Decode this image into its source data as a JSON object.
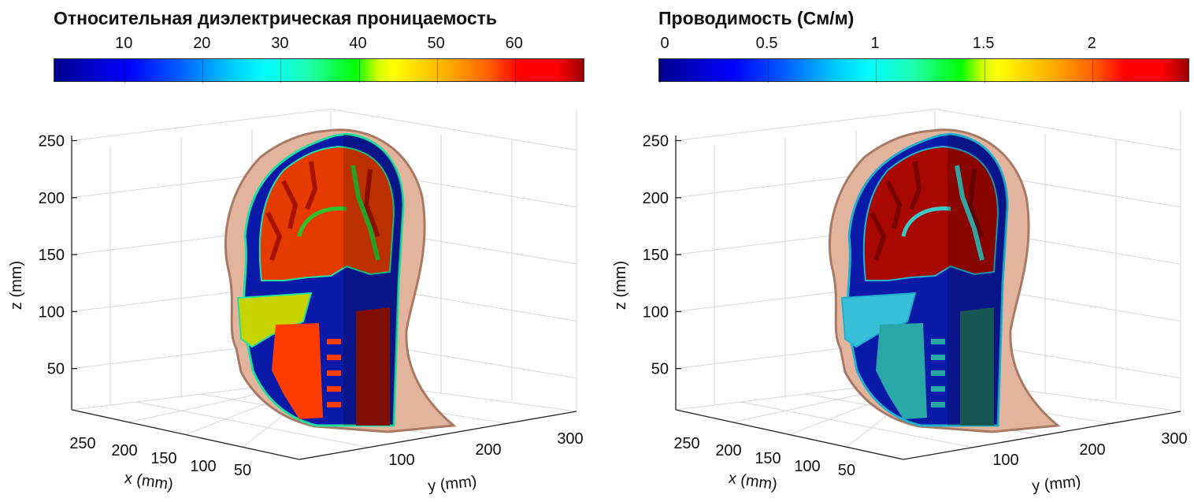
{
  "chart_data": [
    {
      "type": "heatmap",
      "title": "Относительная диэлектрическая проницаемость",
      "colorbar": {
        "ticks": [
          10,
          20,
          30,
          40,
          50,
          60
        ],
        "tick_labels": [
          "10",
          "20",
          "30",
          "40",
          "50",
          "60"
        ],
        "range": [
          1,
          69
        ],
        "colormap": "jet"
      },
      "xlabel": "x (mm)",
      "ylabel": "y (mm)",
      "zlabel": "z (mm)",
      "x_ticks": [
        "250",
        "200",
        "150",
        "100",
        "50"
      ],
      "y_ticks": [
        "100",
        "200",
        "300"
      ],
      "z_ticks": [
        "250",
        "200",
        "150",
        "100",
        "50"
      ],
      "xlim": [
        0,
        270
      ],
      "ylim": [
        0,
        320
      ],
      "zlim": [
        0,
        260
      ],
      "grid": true
    },
    {
      "type": "heatmap",
      "title": "Проводимость (См/м)",
      "colorbar": {
        "ticks": [
          0,
          0.5,
          1,
          1.5,
          2
        ],
        "tick_labels": [
          "0",
          "0.5",
          "1",
          "1.5",
          "2"
        ],
        "range": [
          0,
          2.45
        ],
        "colormap": "jet"
      },
      "xlabel": "x (mm)",
      "ylabel": "y (mm)",
      "zlabel": "z (mm)",
      "x_ticks": [
        "250",
        "200",
        "150",
        "100",
        "50"
      ],
      "y_ticks": [
        "100",
        "200",
        "300"
      ],
      "z_ticks": [
        "250",
        "200",
        "150",
        "100",
        "50"
      ],
      "xlim": [
        0,
        270
      ],
      "ylim": [
        0,
        320
      ],
      "zlim": [
        0,
        260
      ],
      "grid": true
    }
  ],
  "colors": {
    "skin": "#e2b39d",
    "skin_dark": "#a77a66",
    "panel1": {
      "bone": "#0a1aa8",
      "csf": "#22e0a0",
      "brain": "#e63b00",
      "brain_dark": "#a51200",
      "white": "#2ec22e",
      "fat": "#c8d400",
      "muscle": "#ff3c00",
      "neck": "#9e1206"
    },
    "panel2": {
      "bone": "#0a1aa8",
      "csf": "#20b0d0",
      "brain": "#a80800",
      "brain_dark": "#7a0500",
      "white": "#3cc8c8",
      "fat": "#38c0d8",
      "muscle": "#2aa8a8",
      "neck": "#1e6868"
    }
  }
}
